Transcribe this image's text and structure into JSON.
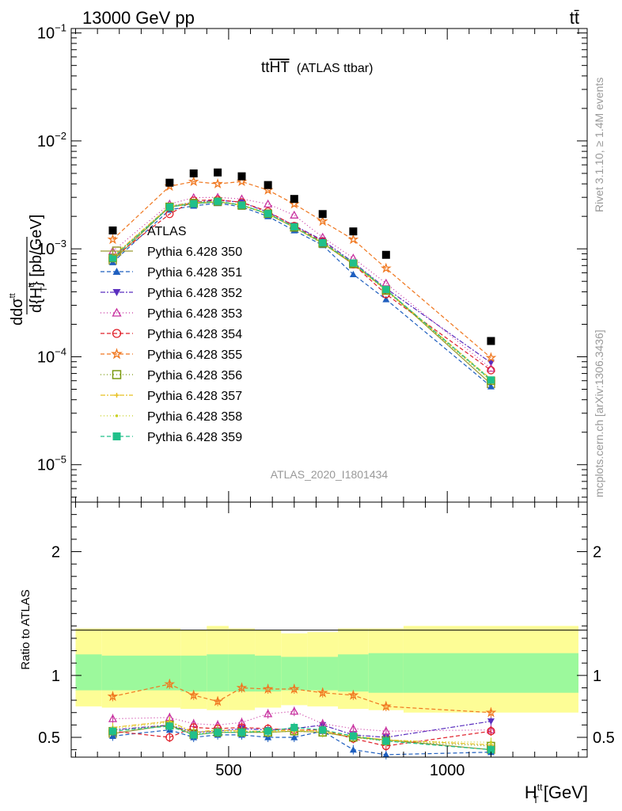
{
  "header": {
    "process": "13000 GeV pp",
    "channel_tag": "tt̄",
    "rivet_note": "Rivet 3.1.10, ≥ 1.4M events",
    "mcplots_note": "mcplots.cern.ch [arXiv:1306.3436]"
  },
  "chart_data": [
    {
      "type": "line",
      "panel": "main",
      "title": "ttHT (ATLAS ttbar)",
      "title_main": "tt",
      "title_over": "HT",
      "title_rest": "(ATLAS ttbar)",
      "analysis_id": "ATLAS_2020_I1801434",
      "ylabel": "d dσ^{tt} / d{H_T^{tt}} [pb/GeV]",
      "ylabel_parts": {
        "d1": "d",
        "dsigma": "dσ",
        "sup": "tt",
        "d2": "d",
        "H": "{H",
        "sub": "T",
        "unit": "} [pb/GeV]"
      },
      "yscale": "log",
      "ylim": [
        4.5e-06,
        0.11
      ],
      "xlim": [
        140,
        1320
      ],
      "yticks": [
        {
          "v": 0.1,
          "m": "10",
          "e": "−1"
        },
        {
          "v": 0.01,
          "m": "10",
          "e": "−2"
        },
        {
          "v": 0.001,
          "m": "10",
          "e": "−3"
        },
        {
          "v": 0.0001,
          "m": "10",
          "e": "−4"
        },
        {
          "v": 1e-05,
          "m": "10",
          "e": "−5"
        }
      ],
      "x": [
        235,
        365,
        420,
        475,
        530,
        590,
        650,
        715,
        785,
        860,
        1100
      ],
      "data": {
        "name": "ATLAS",
        "color": "#000000",
        "values": [
          0.00148,
          0.0041,
          0.005,
          0.0051,
          0.0047,
          0.0039,
          0.0029,
          0.0021,
          0.00145,
          0.00088,
          0.00014
        ]
      },
      "series": [
        {
          "name": "Pythia 6.428 350",
          "color": "#9a9a32",
          "dash": "",
          "marker": "square-open",
          "values": [
            0.00078,
            0.00245,
            0.00262,
            0.00272,
            0.00255,
            0.0021,
            0.00158,
            0.00113,
            0.00072,
            0.00042,
            5.6e-05
          ]
        },
        {
          "name": "Pythia 6.428 351",
          "color": "#1f5fbf",
          "dash": "5,3",
          "marker": "triangle-up",
          "values": [
            0.00075,
            0.0023,
            0.0025,
            0.00265,
            0.00245,
            0.002,
            0.00148,
            0.00108,
            0.00058,
            0.00034,
            5.3e-05
          ]
        },
        {
          "name": "Pythia 6.428 352",
          "color": "#5a2fbf",
          "dash": "6,2,2,2",
          "marker": "triangle-down",
          "values": [
            0.00083,
            0.00248,
            0.0027,
            0.00282,
            0.0027,
            0.00218,
            0.00165,
            0.0012,
            0.00075,
            0.00043,
            8.8e-05
          ]
        },
        {
          "name": "Pythia 6.428 353",
          "color": "#c832a0",
          "dash": "1,3",
          "marker": "triangle-open",
          "values": [
            0.00095,
            0.0026,
            0.00298,
            0.003,
            0.0029,
            0.0026,
            0.00205,
            0.00128,
            0.00082,
            0.00048,
            7.8e-05
          ]
        },
        {
          "name": "Pythia 6.428 354",
          "color": "#e0202a",
          "dash": "5,3",
          "marker": "circle-open",
          "values": [
            0.00082,
            0.0021,
            0.0028,
            0.00285,
            0.0027,
            0.00222,
            0.00163,
            0.00117,
            0.00072,
            0.00038,
            7.5e-05
          ]
        },
        {
          "name": "Pythia 6.428 355",
          "color": "#f07820",
          "dash": "5,3",
          "marker": "star-open",
          "values": [
            0.00122,
            0.0038,
            0.0042,
            0.004,
            0.0042,
            0.0035,
            0.0026,
            0.0018,
            0.00122,
            0.00066,
            9.8e-05
          ]
        },
        {
          "name": "Pythia 6.428 356",
          "color": "#7a9a10",
          "dash": "1,3",
          "marker": "square-open",
          "values": [
            0.00082,
            0.00245,
            0.00266,
            0.00274,
            0.00252,
            0.00212,
            0.00158,
            0.00112,
            0.00073,
            0.00041,
            6e-05
          ]
        },
        {
          "name": "Pythia 6.428 357",
          "color": "#e8c020",
          "dash": "6,2,2,2",
          "marker": "cross-small",
          "values": [
            0.00085,
            0.00248,
            0.00268,
            0.00276,
            0.00255,
            0.00213,
            0.00158,
            0.00114,
            0.00074,
            0.00042,
            6.2e-05
          ]
        },
        {
          "name": "Pythia 6.428 358",
          "color": "#c8d020",
          "dash": "1,3",
          "marker": "dot",
          "values": [
            0.00084,
            0.00244,
            0.00265,
            0.00273,
            0.00252,
            0.0021,
            0.00158,
            0.00112,
            0.00072,
            0.00041,
            6e-05
          ]
        },
        {
          "name": "Pythia 6.428 359",
          "color": "#20c08a",
          "dash": "5,3",
          "marker": "square",
          "values": [
            0.00082,
            0.00244,
            0.00262,
            0.00275,
            0.00254,
            0.00212,
            0.0016,
            0.00114,
            0.00074,
            0.00042,
            6.1e-05
          ]
        }
      ]
    },
    {
      "type": "line",
      "panel": "ratio",
      "ylabel": "Ratio to ATLAS",
      "xlabel": "H_T^{tt} [GeV]",
      "xlabel_parts": {
        "H": "H",
        "sup": "tt",
        "sub": "T",
        "unit": "[GeV]"
      },
      "ylim": [
        0.34,
        2.4
      ],
      "xlim": [
        140,
        1320
      ],
      "yticks": [
        0.5,
        1,
        2
      ],
      "ytick_labels": [
        "0.5",
        "1",
        "2"
      ],
      "xticks": [
        500,
        1000
      ],
      "xtick_labels": [
        "500",
        "1000"
      ],
      "reference": 1,
      "band_bins": [
        {
          "x0": 150,
          "x1": 210,
          "inner": [
            0.88,
            1.17
          ],
          "outer": [
            0.75,
            1.38
          ]
        },
        {
          "x0": 210,
          "x1": 390,
          "inner": [
            0.88,
            1.16
          ],
          "outer": [
            0.74,
            1.38
          ]
        },
        {
          "x0": 390,
          "x1": 450,
          "inner": [
            0.87,
            1.16
          ],
          "outer": [
            0.73,
            1.37
          ]
        },
        {
          "x0": 450,
          "x1": 500,
          "inner": [
            0.87,
            1.17
          ],
          "outer": [
            0.72,
            1.4
          ]
        },
        {
          "x0": 500,
          "x1": 560,
          "inner": [
            0.87,
            1.17
          ],
          "outer": [
            0.72,
            1.38
          ]
        },
        {
          "x0": 560,
          "x1": 620,
          "inner": [
            0.87,
            1.16
          ],
          "outer": [
            0.74,
            1.37
          ]
        },
        {
          "x0": 620,
          "x1": 680,
          "inner": [
            0.88,
            1.15
          ],
          "outer": [
            0.76,
            1.34
          ]
        },
        {
          "x0": 680,
          "x1": 750,
          "inner": [
            0.88,
            1.15
          ],
          "outer": [
            0.75,
            1.35
          ]
        },
        {
          "x0": 750,
          "x1": 820,
          "inner": [
            0.87,
            1.17
          ],
          "outer": [
            0.73,
            1.38
          ]
        },
        {
          "x0": 820,
          "x1": 900,
          "inner": [
            0.86,
            1.18
          ],
          "outer": [
            0.72,
            1.38
          ]
        },
        {
          "x0": 900,
          "x1": 1300,
          "inner": [
            0.86,
            1.18
          ],
          "outer": [
            0.7,
            1.4
          ]
        }
      ],
      "series": [
        {
          "name": "Pythia 6.428 350",
          "values": [
            0.53,
            0.6,
            0.52,
            0.54,
            0.54,
            0.54,
            0.55,
            0.54,
            0.5,
            0.48,
            0.4
          ]
        },
        {
          "name": "Pythia 6.428 351",
          "values": [
            0.51,
            0.56,
            0.5,
            0.52,
            0.52,
            0.5,
            0.5,
            0.55,
            0.4,
            0.36,
            0.38
          ]
        },
        {
          "name": "Pythia 6.428 352",
          "values": [
            0.56,
            0.6,
            0.54,
            0.55,
            0.57,
            0.56,
            0.57,
            0.6,
            0.52,
            0.5,
            0.63
          ]
        },
        {
          "name": "Pythia 6.428 353",
          "values": [
            0.65,
            0.66,
            0.61,
            0.6,
            0.62,
            0.69,
            0.71,
            0.61,
            0.57,
            0.55,
            0.56
          ]
        },
        {
          "name": "Pythia 6.428 354",
          "values": [
            0.55,
            0.5,
            0.58,
            0.57,
            0.58,
            0.57,
            0.56,
            0.56,
            0.49,
            0.43,
            0.55
          ]
        },
        {
          "name": "Pythia 6.428 355",
          "values": [
            0.83,
            0.93,
            0.84,
            0.79,
            0.9,
            0.89,
            0.89,
            0.86,
            0.84,
            0.75,
            0.7
          ]
        },
        {
          "name": "Pythia 6.428 356",
          "values": [
            0.55,
            0.6,
            0.53,
            0.54,
            0.54,
            0.54,
            0.55,
            0.54,
            0.5,
            0.47,
            0.43
          ]
        },
        {
          "name": "Pythia 6.428 357",
          "values": [
            0.58,
            0.63,
            0.54,
            0.56,
            0.55,
            0.55,
            0.56,
            0.55,
            0.51,
            0.48,
            0.44
          ]
        },
        {
          "name": "Pythia 6.428 358",
          "values": [
            0.57,
            0.62,
            0.54,
            0.55,
            0.55,
            0.54,
            0.55,
            0.54,
            0.5,
            0.47,
            0.46
          ]
        },
        {
          "name": "Pythia 6.428 359",
          "values": [
            0.55,
            0.59,
            0.52,
            0.54,
            0.54,
            0.55,
            0.58,
            0.56,
            0.51,
            0.47,
            0.4
          ]
        }
      ]
    }
  ],
  "legend": {
    "placement": "center-left",
    "entries": [
      "ATLAS",
      "Pythia 6.428 350",
      "Pythia 6.428 351",
      "Pythia 6.428 352",
      "Pythia 6.428 353",
      "Pythia 6.428 354",
      "Pythia 6.428 355",
      "Pythia 6.428 356",
      "Pythia 6.428 357",
      "Pythia 6.428 358",
      "Pythia 6.428 359"
    ]
  },
  "colors": {
    "band_inner": "#9cf99c",
    "band_outer": "#fdfd96",
    "watermark": "#999999"
  }
}
